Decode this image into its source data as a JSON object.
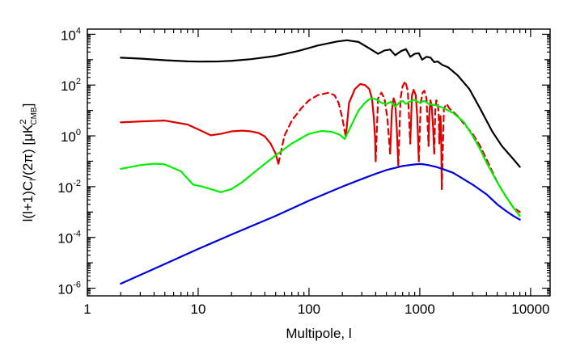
{
  "chart_data": {
    "type": "line",
    "title": "",
    "xlabel": "Multipole, l",
    "ylabel": "l(l+1)C_l/(2π) [μK²_CMB]",
    "xscale": "log",
    "yscale": "log",
    "xlim": [
      1,
      15000
    ],
    "ylim": [
      5e-07,
      16000
    ],
    "grid": false,
    "legend": "none",
    "x_ticks": [
      {
        "value": 1,
        "label": "1"
      },
      {
        "value": 10,
        "label": "10"
      },
      {
        "value": 100,
        "label": "100"
      },
      {
        "value": 1000,
        "label": "1000"
      },
      {
        "value": 10000,
        "label": "10000"
      }
    ],
    "y_ticks": [
      {
        "value": 1e-06,
        "base": "10",
        "exp": "-6"
      },
      {
        "value": 0.0001,
        "base": "10",
        "exp": "-4"
      },
      {
        "value": 0.01,
        "base": "10",
        "exp": "-2"
      },
      {
        "value": 1,
        "base": "10",
        "exp": "0"
      },
      {
        "value": 100,
        "base": "10",
        "exp": "2"
      },
      {
        "value": 10000,
        "base": "10",
        "exp": "4"
      }
    ],
    "series": [
      {
        "color": "#000000",
        "style": "solid",
        "x": [
          2,
          3,
          5,
          8,
          10,
          15,
          20,
          30,
          50,
          80,
          120,
          180,
          220,
          280,
          350,
          420,
          480,
          540,
          600,
          680,
          750,
          820,
          900,
          980,
          1050,
          1150,
          1250,
          1350,
          1450,
          1600,
          1800,
          2200,
          2800,
          3500,
          4500,
          5500,
          7000,
          8000
        ],
        "y": [
          1200,
          1100,
          950,
          860,
          840,
          850,
          900,
          1050,
          1400,
          2200,
          3600,
          5200,
          5800,
          5000,
          2800,
          1700,
          2300,
          2500,
          1500,
          2200,
          2600,
          1300,
          1700,
          1800,
          1000,
          1300,
          1200,
          800,
          850,
          620,
          500,
          240,
          70,
          12,
          1.5,
          0.4,
          0.12,
          0.06
        ]
      },
      {
        "color": "#dd0000",
        "style": "solid",
        "x": [
          2,
          3,
          5,
          8,
          10,
          13,
          16,
          20,
          25,
          30,
          35,
          40,
          45,
          50,
          53
        ],
        "y": [
          3.4,
          3.7,
          4.0,
          2.8,
          1.8,
          1.05,
          1.2,
          1.5,
          1.6,
          1.5,
          1.3,
          0.95,
          0.5,
          0.2,
          0.08
        ]
      },
      {
        "color": "#dd0000",
        "style": "dashed",
        "x": [
          53,
          60,
          70,
          85,
          100,
          120,
          150,
          170,
          185,
          200,
          215
        ],
        "y": [
          0.08,
          1.0,
          4.0,
          12,
          25,
          40,
          50,
          40,
          20,
          5,
          0.9
        ]
      },
      {
        "color": "#dd0000",
        "style": "solid",
        "x": [
          215,
          230,
          260,
          290,
          320,
          350,
          370,
          385,
          395,
          400
        ],
        "y": [
          0.9,
          20,
          70,
          110,
          100,
          70,
          30,
          5,
          0.8,
          0.1
        ]
      },
      {
        "color": "#dd0000",
        "style": "dashed",
        "x": [
          400,
          420,
          450,
          480,
          510,
          540
        ],
        "y": [
          0.1,
          30,
          50,
          30,
          5,
          0.2
        ]
      },
      {
        "color": "#dd0000",
        "style": "solid",
        "x": [
          540,
          560,
          580,
          600,
          620,
          640
        ],
        "y": [
          0.2,
          10,
          30,
          20,
          2,
          0.07
        ]
      },
      {
        "color": "#dd0000",
        "style": "dashed",
        "x": [
          640,
          670,
          700,
          740,
          780,
          820
        ],
        "y": [
          0.07,
          30,
          90,
          140,
          60,
          0.5
        ]
      },
      {
        "color": "#dd0000",
        "style": "solid",
        "x": [
          820,
          850,
          880,
          920,
          950,
          980
        ],
        "y": [
          0.5,
          40,
          65,
          40,
          5,
          0.1
        ]
      },
      {
        "color": "#dd0000",
        "style": "dashed",
        "x": [
          980,
          1020,
          1060,
          1100,
          1150,
          1200
        ],
        "y": [
          0.1,
          20,
          50,
          60,
          30,
          0.4
        ]
      },
      {
        "color": "#dd0000",
        "style": "solid",
        "x": [
          1200,
          1220,
          1250,
          1280,
          1320,
          1350
        ],
        "y": [
          0.4,
          8,
          25,
          15,
          2,
          0.2
        ]
      },
      {
        "color": "#dd0000",
        "style": "dashed",
        "x": [
          1350,
          1380,
          1410,
          1450,
          1480,
          1500
        ],
        "y": [
          0.2,
          10,
          25,
          20,
          8,
          0.5
        ]
      },
      {
        "color": "#dd0000",
        "style": "solid",
        "x": [
          1500,
          1520,
          1540,
          1560,
          1580
        ],
        "y": [
          0.5,
          4,
          6,
          1,
          0.008
        ]
      },
      {
        "color": "#dd0000",
        "style": "dashed",
        "x": [
          1580,
          1650,
          1750,
          1850,
          2000,
          2200,
          2500,
          3000,
          3500,
          4000,
          4500,
          5000,
          6000,
          7000,
          8000
        ],
        "y": [
          0.008,
          12,
          18,
          12,
          9,
          6,
          3,
          1.2,
          0.4,
          0.12,
          0.04,
          0.015,
          0.004,
          0.0015,
          0.001
        ]
      },
      {
        "color": "#00ee00",
        "style": "solid",
        "x": [
          2,
          3,
          4,
          5,
          7,
          9,
          11,
          13,
          16,
          20,
          25,
          35,
          50,
          70,
          100,
          130,
          160,
          190,
          210,
          240,
          280,
          320,
          360,
          400,
          450,
          500,
          550,
          600,
          650,
          700,
          750,
          800,
          900,
          1000,
          1100,
          1200,
          1400,
          1600,
          1800,
          2000,
          2500,
          3000,
          3500,
          4000,
          5000,
          6000,
          7000,
          8000
        ],
        "y": [
          0.05,
          0.07,
          0.08,
          0.075,
          0.04,
          0.012,
          0.01,
          0.008,
          0.006,
          0.008,
          0.015,
          0.05,
          0.17,
          0.5,
          1.2,
          1.55,
          1.45,
          1.1,
          0.75,
          2.5,
          10,
          20,
          30,
          28,
          20,
          18,
          22,
          14,
          20,
          24,
          18,
          22,
          26,
          20,
          24,
          18,
          16,
          13,
          10,
          8,
          3.5,
          1.0,
          0.3,
          0.09,
          0.015,
          0.004,
          0.0015,
          0.0007
        ]
      },
      {
        "color": "#0000dd",
        "style": "solid",
        "x": [
          2,
          5,
          10,
          20,
          50,
          100,
          200,
          300,
          400,
          500,
          600,
          700,
          800,
          900,
          1000,
          1100,
          1200,
          1400,
          1600,
          2000,
          3000,
          4000,
          5000,
          6000,
          7000,
          8000
        ],
        "y": [
          1.5e-06,
          9e-06,
          3.5e-05,
          0.00013,
          0.0007,
          0.0028,
          0.01,
          0.02,
          0.032,
          0.045,
          0.055,
          0.065,
          0.07,
          0.075,
          0.078,
          0.075,
          0.07,
          0.06,
          0.05,
          0.035,
          0.012,
          0.005,
          0.002,
          0.0011,
          0.0007,
          0.0005
        ]
      }
    ]
  }
}
